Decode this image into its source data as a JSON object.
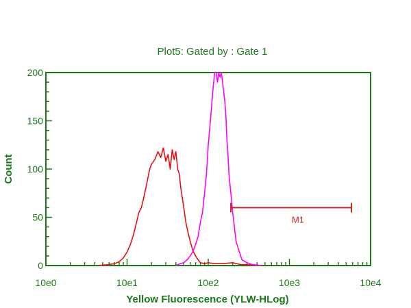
{
  "colors": {
    "axis": "#1a7a1a",
    "series1": "#e81010",
    "series2": "#ff00ff",
    "marker": "#cc2222"
  },
  "chart_data": {
    "type": "line",
    "title": "Plot5:  Gated by : Gate 1",
    "xlabel": "Yellow Fluorescence (YLW-HLog)",
    "ylabel": "Count",
    "xscale": "log",
    "xlim": [
      1,
      10000
    ],
    "ylim": [
      0,
      200
    ],
    "x_tick_labels": [
      "10e0",
      "10e1",
      "10e2",
      "10e3",
      "10e4"
    ],
    "x_tick_values": [
      1,
      10,
      100,
      1000,
      10000
    ],
    "y_tick_labels": [
      "0",
      "50",
      "100",
      "150",
      "200"
    ],
    "y_tick_values": [
      0,
      50,
      100,
      150,
      200
    ],
    "grid": false,
    "series": [
      {
        "color": "#e81010",
        "x": [
          4.5,
          6,
          7,
          8,
          9,
          10,
          11,
          12,
          13,
          14,
          15,
          16,
          17,
          18,
          19,
          20,
          22,
          24,
          26,
          28,
          30,
          32,
          34,
          36,
          38,
          40,
          42,
          44,
          46,
          48,
          50,
          53,
          56,
          60,
          65,
          70,
          75,
          80,
          90,
          100,
          120,
          150,
          200,
          250,
          300,
          400
        ],
        "y": [
          0,
          1,
          2,
          4,
          8,
          14,
          22,
          32,
          44,
          55,
          60,
          70,
          80,
          90,
          100,
          105,
          110,
          118,
          112,
          122,
          108,
          115,
          100,
          120,
          110,
          118,
          100,
          95,
          80,
          70,
          60,
          45,
          35,
          25,
          15,
          10,
          6,
          3,
          2,
          3,
          2,
          2,
          3,
          1,
          1,
          0
        ]
      },
      {
        "color": "#ff00ff",
        "x": [
          40,
          45,
          50,
          55,
          60,
          65,
          70,
          75,
          80,
          85,
          90,
          95,
          100,
          105,
          110,
          115,
          120,
          125,
          130,
          135,
          140,
          145,
          150,
          155,
          160,
          165,
          170,
          175,
          180,
          190,
          200,
          210,
          220,
          240,
          260,
          300,
          350,
          450
        ],
        "y": [
          0,
          2,
          3,
          6,
          10,
          15,
          22,
          30,
          45,
          55,
          75,
          95,
          125,
          145,
          165,
          185,
          200,
          200,
          190,
          200,
          195,
          200,
          190,
          180,
          170,
          155,
          130,
          115,
          95,
          75,
          55,
          40,
          25,
          15,
          6,
          3,
          1,
          0
        ]
      }
    ],
    "annotations": [
      {
        "label": "M1",
        "x_start": 190,
        "x_end": 5800,
        "y": 60
      }
    ]
  }
}
